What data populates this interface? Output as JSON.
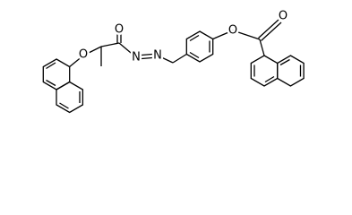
{
  "atoms": [
    {
      "label": "O"
    },
    {
      "label": "O"
    },
    {
      "label": "N"
    },
    {
      "label": "N"
    },
    {
      "label": "O"
    },
    {
      "label": "O"
    }
  ]
}
